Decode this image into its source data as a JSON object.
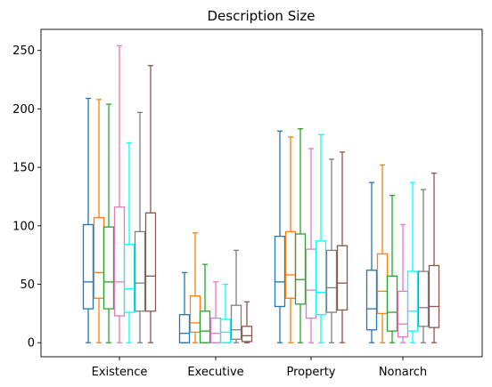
{
  "chart_data": {
    "type": "box",
    "title": "Description Size",
    "xlabel": "",
    "ylabel": "",
    "categories": [
      "Existence",
      "Executive",
      "Property",
      "Nonarch"
    ],
    "ylim": [
      -12,
      268
    ],
    "yticks": [
      0,
      50,
      100,
      150,
      200,
      250
    ],
    "grid": false,
    "legend": "none",
    "series_colors": [
      "#1f77b4",
      "#ff7f0e",
      "#2ca02c",
      "#e377c2",
      "#00ffff",
      "#7f7f7f",
      "#8c564b"
    ],
    "boxes": [
      [
        {
          "min": 0,
          "q1": 29,
          "median": 52,
          "q3": 101,
          "max": 209
        },
        {
          "min": 0,
          "q1": 38,
          "median": 60,
          "q3": 107,
          "max": 208
        },
        {
          "min": 0,
          "q1": 29,
          "median": 52,
          "q3": 99,
          "max": 204
        },
        {
          "min": 0,
          "q1": 23,
          "median": 52,
          "q3": 116,
          "max": 254
        },
        {
          "min": 0,
          "q1": 26,
          "median": 46,
          "q3": 84,
          "max": 171
        },
        {
          "min": 0,
          "q1": 27,
          "median": 51,
          "q3": 95,
          "max": 197
        },
        {
          "min": 0,
          "q1": 27,
          "median": 57,
          "q3": 111,
          "max": 237
        }
      ],
      [
        {
          "min": 0,
          "q1": 0,
          "median": 8,
          "q3": 24,
          "max": 60
        },
        {
          "min": 0,
          "q1": 9,
          "median": 17,
          "q3": 40,
          "max": 94
        },
        {
          "min": 0,
          "q1": 0,
          "median": 10,
          "q3": 27,
          "max": 67
        },
        {
          "min": 0,
          "q1": 0,
          "median": 8,
          "q3": 21,
          "max": 52
        },
        {
          "min": 0,
          "q1": 0,
          "median": 9,
          "q3": 20,
          "max": 50
        },
        {
          "min": 0,
          "q1": 3,
          "median": 11,
          "q3": 32,
          "max": 79
        },
        {
          "min": 0,
          "q1": 1,
          "median": 6,
          "q3": 14,
          "max": 35
        }
      ],
      [
        {
          "min": 0,
          "q1": 31,
          "median": 52,
          "q3": 91,
          "max": 181
        },
        {
          "min": 0,
          "q1": 38,
          "median": 58,
          "q3": 95,
          "max": 176
        },
        {
          "min": 0,
          "q1": 33,
          "median": 54,
          "q3": 93,
          "max": 183
        },
        {
          "min": 0,
          "q1": 21,
          "median": 45,
          "q3": 80,
          "max": 166
        },
        {
          "min": 0,
          "q1": 24,
          "median": 43,
          "q3": 87,
          "max": 178
        },
        {
          "min": 0,
          "q1": 26,
          "median": 47,
          "q3": 79,
          "max": 157
        },
        {
          "min": 0,
          "q1": 28,
          "median": 51,
          "q3": 83,
          "max": 163
        }
      ],
      [
        {
          "min": 0,
          "q1": 11,
          "median": 29,
          "q3": 62,
          "max": 137
        },
        {
          "min": 0,
          "q1": 25,
          "median": 44,
          "q3": 76,
          "max": 152
        },
        {
          "min": 0,
          "q1": 10,
          "median": 26,
          "q3": 57,
          "max": 126
        },
        {
          "min": 0,
          "q1": 5,
          "median": 16,
          "q3": 44,
          "max": 101
        },
        {
          "min": 0,
          "q1": 10,
          "median": 27,
          "q3": 61,
          "max": 137
        },
        {
          "min": 0,
          "q1": 14,
          "median": 30,
          "q3": 61,
          "max": 131
        },
        {
          "min": 0,
          "q1": 13,
          "median": 31,
          "q3": 66,
          "max": 145
        }
      ]
    ]
  }
}
